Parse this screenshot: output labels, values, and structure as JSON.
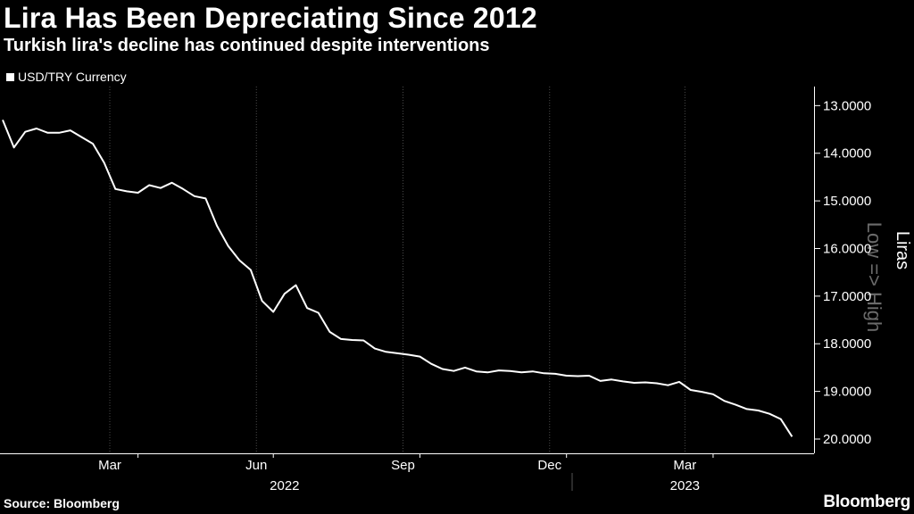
{
  "title": "Lira Has Been Depreciating Since 2012",
  "subtitle": "Turkish lira's decline has continued despite interventions",
  "source": "Source: Bloomberg",
  "brand": "Bloomberg",
  "chart_data": {
    "type": "line",
    "title": "Lira Has Been Depreciating Since 2012",
    "subtitle": "Turkish lira's decline has continued despite interventions",
    "legend": [
      "USD/TRY Currency"
    ],
    "legend_position": "top-left",
    "ylabel": "Liras",
    "yaxis_note": "Low => High",
    "yaxis_inverted": true,
    "yaxis_position": "right",
    "ylim": [
      12.6,
      20.3
    ],
    "yticks": [
      13,
      14,
      15,
      16,
      17,
      18,
      19,
      20
    ],
    "ytick_labels": [
      "13.0000",
      "14.0000",
      "15.0000",
      "16.0000",
      "17.0000",
      "18.0000",
      "19.0000",
      "20.0000"
    ],
    "xlim": [
      0,
      71
    ],
    "x_month_ticks": [
      {
        "label": "Mar",
        "x": 9.5
      },
      {
        "label": "Jun",
        "x": 22.5
      },
      {
        "label": "Sep",
        "x": 35.5
      },
      {
        "label": "Dec",
        "x": 48.5
      },
      {
        "label": "Mar",
        "x": 60.5
      }
    ],
    "x_minor_ticks": [
      12,
      24,
      37,
      50,
      63
    ],
    "x_year_labels": [
      {
        "label": "2022",
        "x": 25
      },
      {
        "label": "2023",
        "x": 60.5
      }
    ],
    "year_separator_x": 50.5,
    "grid": "vertical",
    "series": [
      {
        "name": "USD/TRY Currency",
        "color": "#ffffff",
        "x": [
          0,
          1,
          2,
          3,
          4,
          5,
          6,
          7,
          8,
          9,
          10,
          11,
          12,
          13,
          14,
          15,
          16,
          17,
          18,
          19,
          20,
          21,
          22,
          23,
          24,
          25,
          26,
          27,
          28,
          29,
          30,
          31,
          32,
          33,
          34,
          35,
          36,
          37,
          38,
          39,
          40,
          41,
          42,
          43,
          44,
          45,
          46,
          47,
          48,
          49,
          50,
          51,
          52,
          53,
          54,
          55,
          56,
          57,
          58,
          59,
          60,
          61,
          62,
          63,
          64,
          65,
          66,
          67,
          68,
          69,
          70
        ],
        "values": [
          13.3,
          13.88,
          13.55,
          13.48,
          13.57,
          13.57,
          13.52,
          13.66,
          13.8,
          14.2,
          14.75,
          14.8,
          14.83,
          14.67,
          14.73,
          14.62,
          14.75,
          14.9,
          14.95,
          15.52,
          15.95,
          16.25,
          16.45,
          17.1,
          17.33,
          16.95,
          16.77,
          17.25,
          17.35,
          17.75,
          17.9,
          17.92,
          17.93,
          18.1,
          18.17,
          18.2,
          18.23,
          18.27,
          18.42,
          18.53,
          18.57,
          18.5,
          18.58,
          18.6,
          18.56,
          18.57,
          18.6,
          18.58,
          18.62,
          18.63,
          18.67,
          18.68,
          18.67,
          18.78,
          18.75,
          18.79,
          18.82,
          18.81,
          18.83,
          18.87,
          18.8,
          18.97,
          19.01,
          19.06,
          19.2,
          19.28,
          19.37,
          19.4,
          19.47,
          19.58,
          19.95
        ]
      }
    ]
  }
}
